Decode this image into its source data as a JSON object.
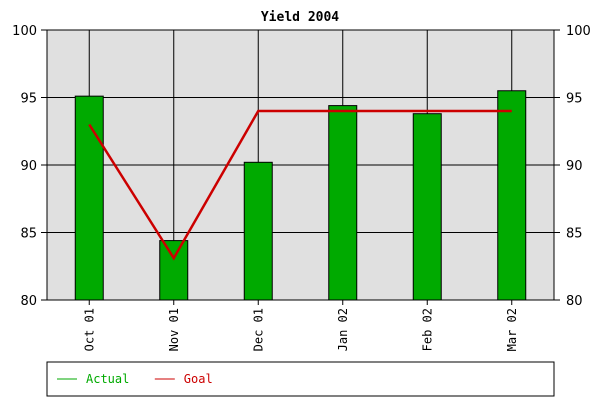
{
  "chart_data": {
    "type": "bar",
    "title": "Yield 2004",
    "categories": [
      "Oct 01",
      "Nov 01",
      "Dec 01",
      "Jan 02",
      "Feb 02",
      "Mar 02"
    ],
    "ylim": [
      80,
      100
    ],
    "yticks": [
      80,
      85,
      90,
      95,
      100
    ],
    "grid": true,
    "legend_position": "bottom",
    "series": [
      {
        "name": "Actual",
        "kind": "bar",
        "color": "#00aa00",
        "values": [
          95.1,
          84.4,
          90.2,
          94.4,
          93.8,
          95.5
        ]
      },
      {
        "name": "Goal",
        "kind": "line",
        "color": "#cc0000",
        "values": [
          93.0,
          83.1,
          94.0,
          94.0,
          94.0,
          94.0
        ]
      }
    ],
    "plot_background": "#e0e0e0"
  }
}
